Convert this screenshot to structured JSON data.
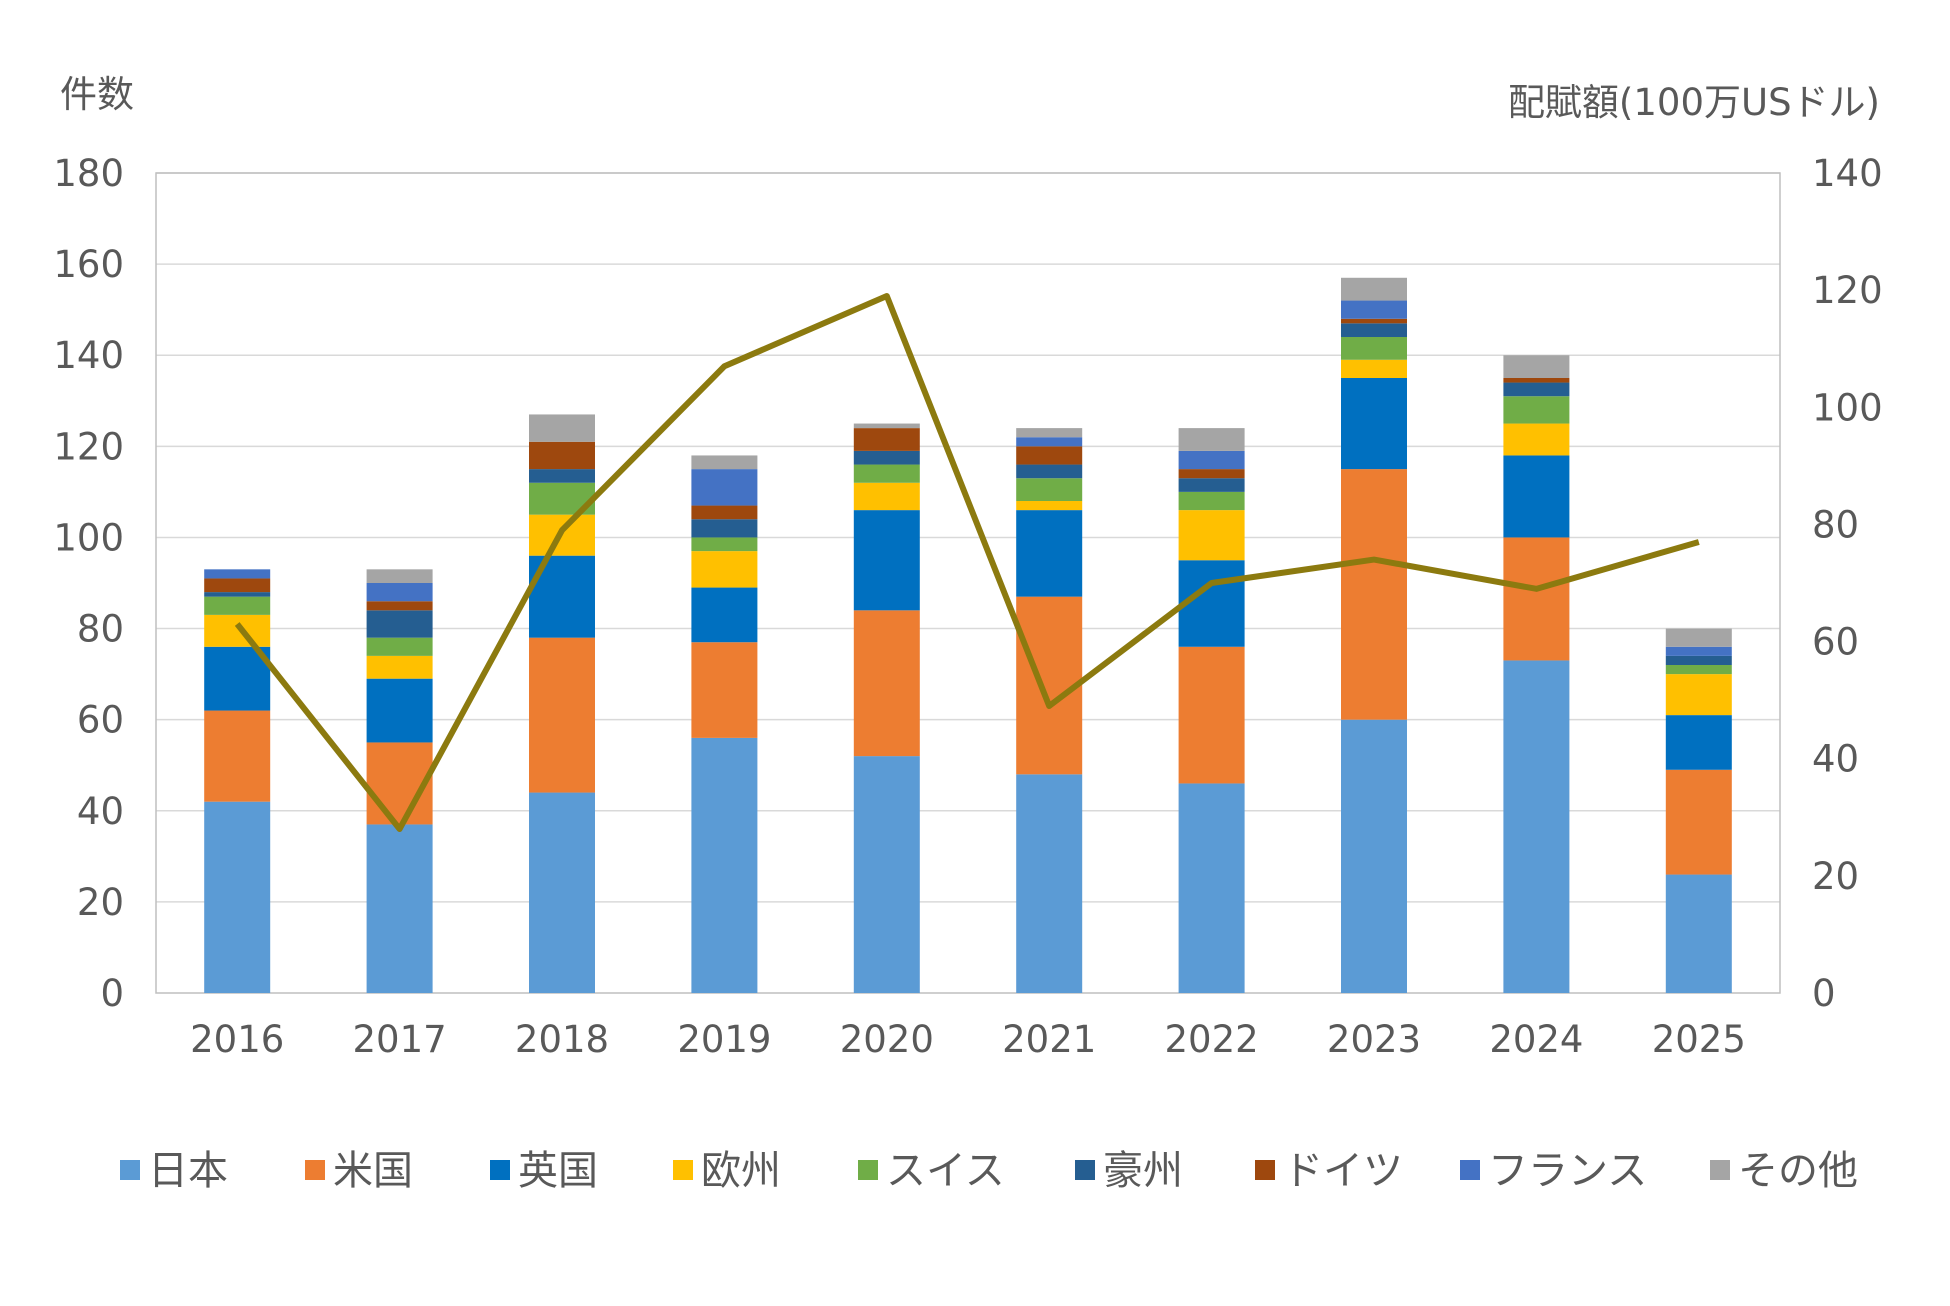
{
  "chart_data": {
    "type": "bar",
    "stacked": true,
    "categories": [
      "2016",
      "2017",
      "2018",
      "2019",
      "2020",
      "2021",
      "2022",
      "2023",
      "2024",
      "2025"
    ],
    "y_left": {
      "label": "件数",
      "ylim": [
        0,
        180
      ],
      "ticks": [
        0,
        20,
        40,
        60,
        80,
        100,
        120,
        140,
        160,
        180
      ]
    },
    "y_right": {
      "label": "配賦額(100万USドル)",
      "ylim": [
        0,
        140
      ],
      "ticks": [
        0,
        20,
        40,
        60,
        80,
        100,
        120,
        140
      ]
    },
    "grid": true,
    "legend_position": "bottom",
    "series": [
      {
        "name": "日本",
        "color": "#5B9BD5",
        "values": [
          42,
          37,
          44,
          56,
          52,
          48,
          46,
          60,
          73,
          26
        ]
      },
      {
        "name": "米国",
        "color": "#ED7D31",
        "values": [
          20,
          18,
          34,
          21,
          32,
          39,
          30,
          55,
          27,
          23
        ]
      },
      {
        "name": "英国",
        "color": "#0070C0",
        "values": [
          14,
          14,
          18,
          12,
          22,
          19,
          19,
          20,
          18,
          12
        ]
      },
      {
        "name": "欧州",
        "color": "#FFC000",
        "values": [
          7,
          5,
          9,
          8,
          6,
          2,
          11,
          4,
          7,
          9
        ]
      },
      {
        "name": "スイス",
        "color": "#70AD47",
        "values": [
          4,
          4,
          7,
          3,
          4,
          5,
          4,
          5,
          6,
          2
        ]
      },
      {
        "name": "豪州",
        "color": "#255E91",
        "values": [
          1,
          6,
          3,
          4,
          3,
          3,
          3,
          3,
          3,
          2
        ]
      },
      {
        "name": "ドイツ",
        "color": "#9E480E",
        "values": [
          3,
          2,
          6,
          3,
          5,
          4,
          2,
          1,
          1,
          0
        ]
      },
      {
        "name": "フランス",
        "color": "#4472C4",
        "values": [
          2,
          4,
          0,
          8,
          0,
          2,
          4,
          4,
          0,
          2
        ]
      },
      {
        "name": "その他",
        "color": "#A5A5A5",
        "values": [
          0,
          3,
          6,
          3,
          1,
          2,
          5,
          5,
          5,
          4
        ]
      }
    ],
    "line_series": {
      "axis": "right",
      "color": "#8C7A0F",
      "values": [
        63,
        28,
        79,
        107,
        119,
        49,
        70,
        74,
        69,
        77
      ]
    }
  }
}
